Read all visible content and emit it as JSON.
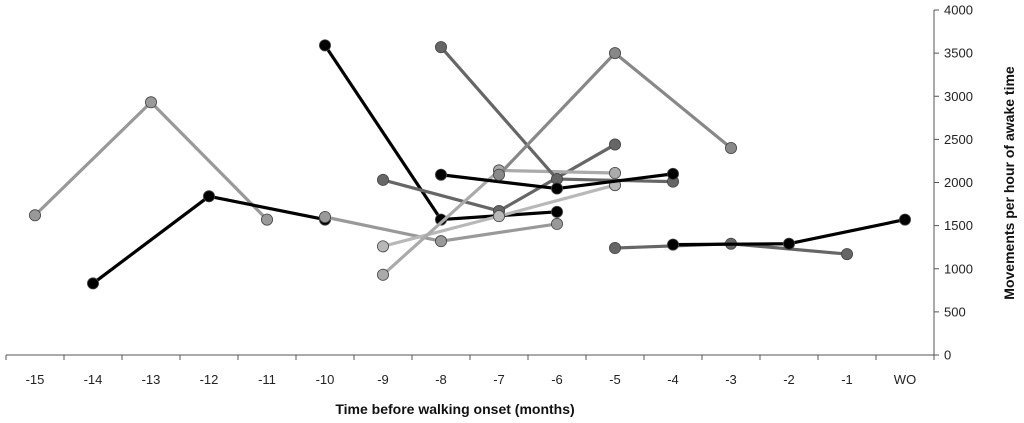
{
  "chart_data": {
    "type": "line",
    "title": "",
    "xlabel": "Time before walking onset (months)",
    "ylabel": "Movements per hour of awake time",
    "categories": [
      "-15",
      "-14",
      "-13",
      "-12",
      "-11",
      "-10",
      "-9",
      "-8",
      "-7",
      "-6",
      "-5",
      "-4",
      "-3",
      "-2",
      "-1",
      "WO"
    ],
    "ylim": [
      0,
      4000
    ],
    "yticks": [
      0,
      500,
      1000,
      1500,
      2000,
      2500,
      3000,
      3500,
      4000
    ],
    "y_axis_side": "right",
    "grid": false,
    "legend": "none",
    "series": [
      {
        "color": "#999999",
        "points": [
          [
            "-15",
            1620
          ],
          [
            "-13",
            2930
          ],
          [
            "-11",
            1570
          ]
        ]
      },
      {
        "color": "#000000",
        "points": [
          [
            "-14",
            830
          ],
          [
            "-12",
            1840
          ],
          [
            "-10",
            1570
          ]
        ]
      },
      {
        "color": "#999999",
        "points": [
          [
            "-10",
            1600
          ],
          [
            "-8",
            1320
          ],
          [
            "-6",
            1520
          ]
        ]
      },
      {
        "color": "#000000",
        "points": [
          [
            "-10",
            3590
          ],
          [
            "-8",
            1570
          ],
          [
            "-6",
            1660
          ]
        ]
      },
      {
        "color": "#666666",
        "points": [
          [
            "-9",
            2030
          ],
          [
            "-7",
            1670
          ],
          [
            "-5",
            2440
          ]
        ]
      },
      {
        "color": "#b8b8b8",
        "points": [
          [
            "-9",
            1260
          ],
          [
            "-7",
            1610
          ],
          [
            "-5",
            1970
          ]
        ]
      },
      {
        "color": "#aaaaaa",
        "points": [
          [
            "-9",
            930
          ],
          [
            "-7",
            2140
          ],
          [
            "-5",
            2110
          ]
        ]
      },
      {
        "color": "#666666",
        "points": [
          [
            "-8",
            3570
          ],
          [
            "-6",
            2040
          ],
          [
            "-4",
            2010
          ]
        ]
      },
      {
        "color": "#000000",
        "points": [
          [
            "-8",
            2090
          ],
          [
            "-6",
            1930
          ],
          [
            "-4",
            2100
          ]
        ]
      },
      {
        "color": "#888888",
        "points": [
          [
            "-7",
            2090
          ],
          [
            "-5",
            3500
          ],
          [
            "-3",
            2400
          ]
        ]
      },
      {
        "color": "#666666",
        "points": [
          [
            "-5",
            1240
          ],
          [
            "-3",
            1290
          ],
          [
            "-1",
            1170
          ]
        ]
      },
      {
        "color": "#000000",
        "points": [
          [
            "-4",
            1280
          ],
          [
            "-2",
            1290
          ],
          [
            "WO",
            1570
          ]
        ]
      }
    ]
  }
}
